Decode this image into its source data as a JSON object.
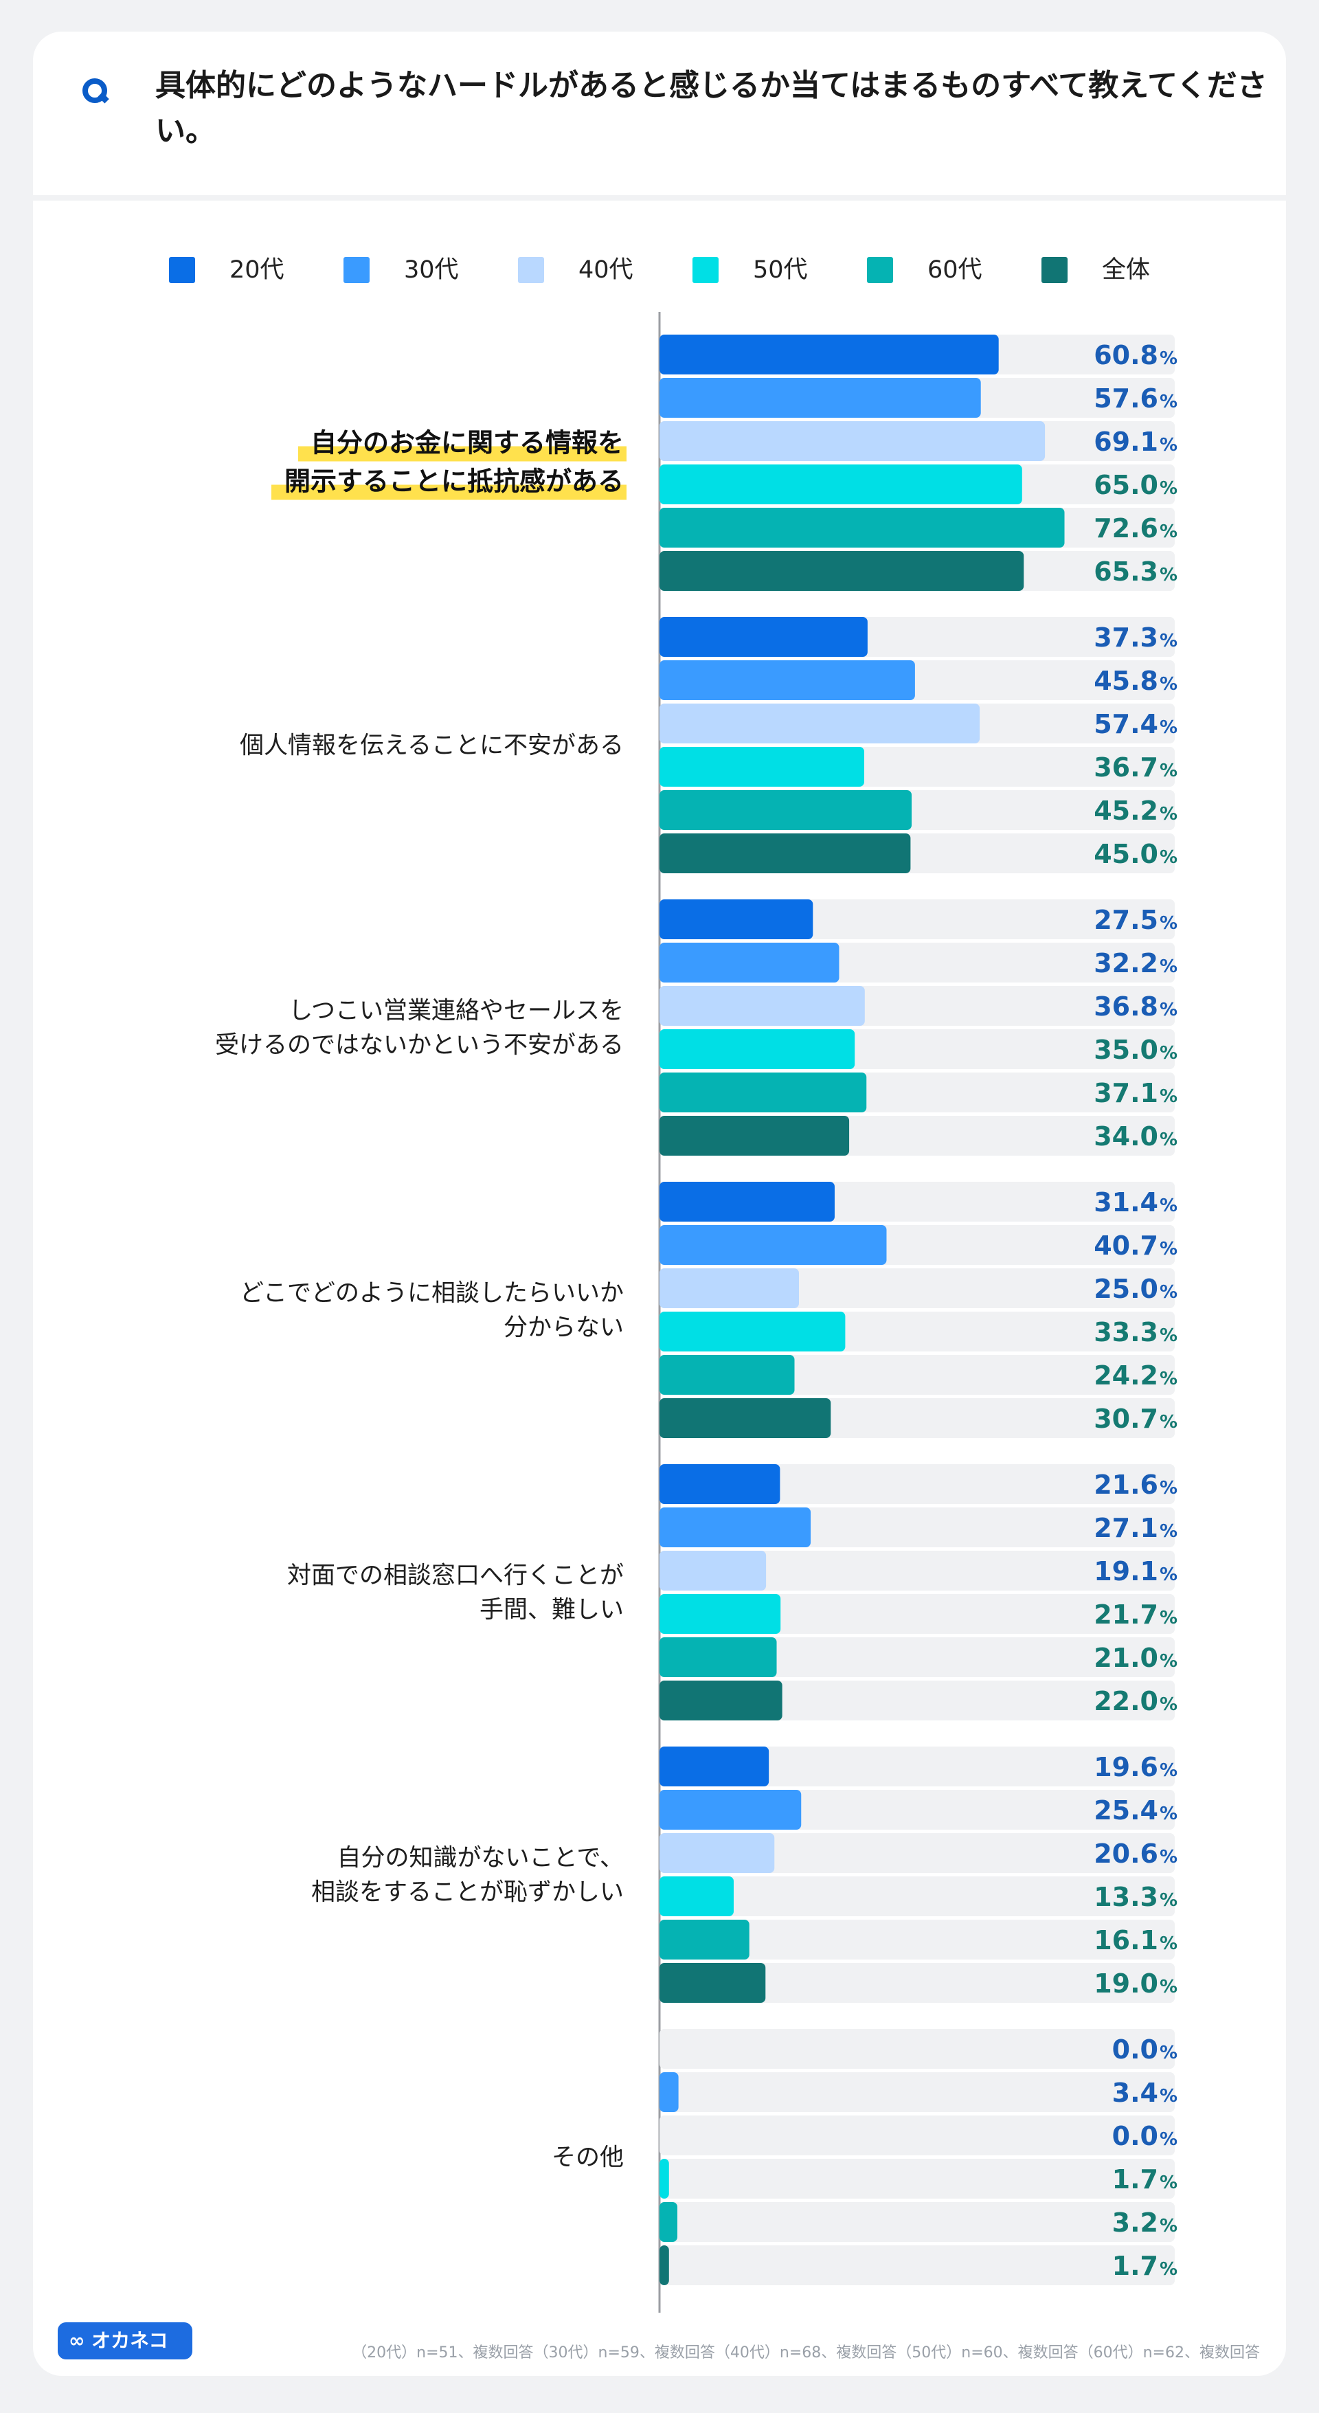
{
  "question": {
    "mark": "Q",
    "text": "具体的にどのようなハードルがあると感じるか当てはまるものすべて教えてください。"
  },
  "colors": {
    "series": [
      "#0a6ee6",
      "#3a9bff",
      "#b9d8ff",
      "#00dfe5",
      "#05b3b3",
      "#117574"
    ],
    "value_text_young": "#1a5db5",
    "value_text_old": "#157a72",
    "track": "#f0f1f3",
    "highlight": "#ffe14d"
  },
  "chart_data": {
    "type": "bar",
    "orientation": "horizontal",
    "xlim": [
      0,
      100
    ],
    "value_suffix": "%",
    "series": [
      {
        "name": "20代",
        "values": [
          60.8,
          37.3,
          27.5,
          31.4,
          21.6,
          19.6,
          0.0
        ]
      },
      {
        "name": "30代",
        "values": [
          57.6,
          45.8,
          32.2,
          40.7,
          27.1,
          25.4,
          3.4
        ]
      },
      {
        "name": "40代",
        "values": [
          69.1,
          57.4,
          36.8,
          25.0,
          19.1,
          20.6,
          0.0
        ]
      },
      {
        "name": "50代",
        "values": [
          65.0,
          36.7,
          35.0,
          33.3,
          21.7,
          13.3,
          1.7
        ]
      },
      {
        "name": "60代",
        "values": [
          72.6,
          45.2,
          37.1,
          24.2,
          21.0,
          16.1,
          3.2
        ]
      },
      {
        "name": "全体",
        "values": [
          65.3,
          45.0,
          34.0,
          30.7,
          22.0,
          19.0,
          1.7
        ]
      }
    ],
    "categories": [
      {
        "lines": [
          "自分のお金に関する情報を",
          "開示することに抵抗感がある"
        ],
        "highlight": true
      },
      {
        "lines": [
          "個人情報を伝えることに不安がある"
        ],
        "highlight": false
      },
      {
        "lines": [
          "しつこい営業連絡やセールスを",
          "受けるのではないかという不安がある"
        ],
        "highlight": false
      },
      {
        "lines": [
          "どこでどのように相談したらいいか",
          "分からない"
        ],
        "highlight": false
      },
      {
        "lines": [
          "対面での相談窓口へ行くことが",
          "手間、難しい"
        ],
        "highlight": false
      },
      {
        "lines": [
          "自分の知識がないことで、",
          "相談をすることが恥ずかしい"
        ],
        "highlight": false
      },
      {
        "lines": [
          "その他"
        ],
        "highlight": false
      }
    ]
  },
  "logo": {
    "text": "∞ オカネコ",
    "mascot": "cat-mascot-icon"
  },
  "footnote": "（20代）n=51、複数回答（30代）n=59、複数回答（40代）n=68、複数回答（50代）n=60、複数回答（60代）n=62、複数回答"
}
